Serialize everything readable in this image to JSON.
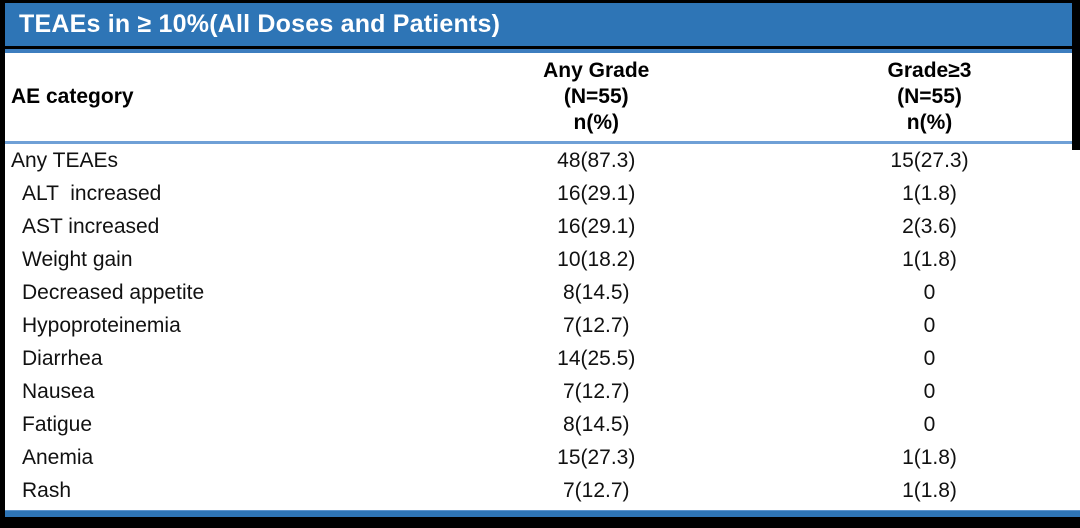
{
  "title_bar": {
    "title": "TEAEs in ≥ 10%(All Doses and Patients)"
  },
  "table": {
    "columns": [
      {
        "label": "AE category"
      },
      {
        "label": "Any Grade\n(N=55)\nn(%)"
      },
      {
        "label": "Grade≥3\n(N=55)\nn(%)"
      }
    ],
    "rows": [
      {
        "category": "Any TEAEs",
        "any_grade": "48(87.3)",
        "grade_ge3": "15(27.3)",
        "indent": false
      },
      {
        "category": "ALT  increased",
        "any_grade": "16(29.1)",
        "grade_ge3": "1(1.8)",
        "indent": true
      },
      {
        "category": "AST increased",
        "any_grade": "16(29.1)",
        "grade_ge3": "2(3.6)",
        "indent": true
      },
      {
        "category": "Weight gain",
        "any_grade": "10(18.2)",
        "grade_ge3": "1(1.8)",
        "indent": true
      },
      {
        "category": "Decreased appetite",
        "any_grade": "8(14.5)",
        "grade_ge3": "0",
        "indent": true
      },
      {
        "category": "Hypoproteinemia",
        "any_grade": "7(12.7)",
        "grade_ge3": "0",
        "indent": true
      },
      {
        "category": "Diarrhea",
        "any_grade": "14(25.5)",
        "grade_ge3": "0",
        "indent": true
      },
      {
        "category": "Nausea",
        "any_grade": "7(12.7)",
        "grade_ge3": "0",
        "indent": true
      },
      {
        "category": "Fatigue",
        "any_grade": "8(14.5)",
        "grade_ge3": "0",
        "indent": true
      },
      {
        "category": "Anemia",
        "any_grade": "15(27.3)",
        "grade_ge3": "1(1.8)",
        "indent": true
      },
      {
        "category": "Rash",
        "any_grade": "7(12.7)",
        "grade_ge3": "1(1.8)",
        "indent": true
      }
    ]
  },
  "colors": {
    "title_bar_blue": "#2E75B6",
    "accent_line_blue": "#3D7EBF",
    "header_rule_blue": "#6FA0D6",
    "bottom_bar_blue": "#2E75B6",
    "frame_black": "#000000",
    "background_white": "#ffffff",
    "title_text": "#ffffff",
    "body_text": "#111111"
  }
}
